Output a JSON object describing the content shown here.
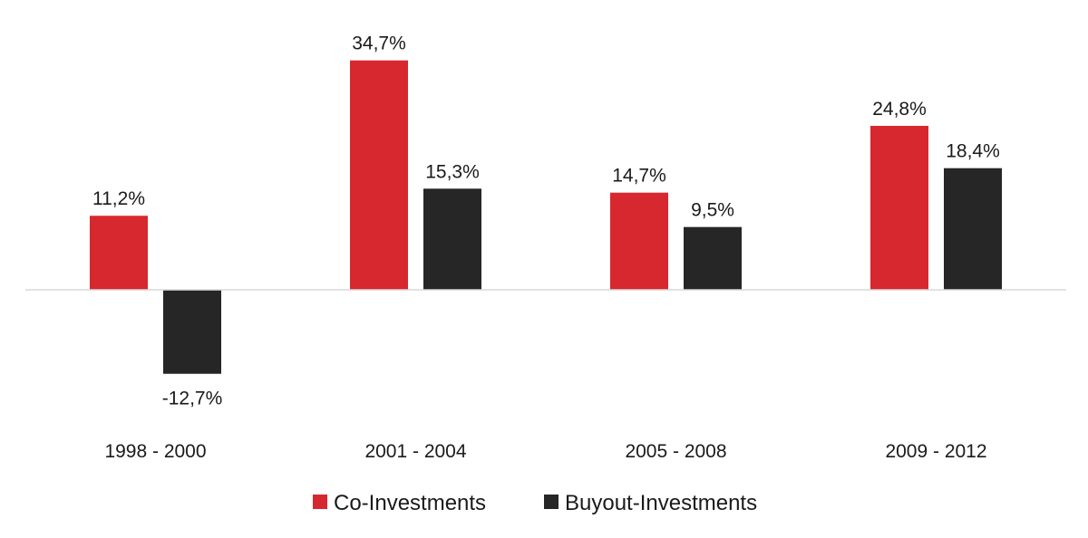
{
  "chart_data": {
    "type": "bar",
    "categories": [
      "1998 - 2000",
      "2001 - 2004",
      "2005 - 2008",
      "2009 - 2012"
    ],
    "series": [
      {
        "name": "Co-Investments",
        "color": "#d7282f",
        "values": [
          11.2,
          34.7,
          14.7,
          24.8
        ],
        "labels": [
          "11,2%",
          "34,7%",
          "14,7%",
          "24,8%"
        ]
      },
      {
        "name": "Buyout-Investments",
        "color": "#262626",
        "values": [
          -12.7,
          15.3,
          9.5,
          18.4
        ],
        "labels": [
          "-12,7%",
          "15,3%",
          "9,5%",
          "18,4%"
        ]
      }
    ],
    "ylim": [
      -18,
      40
    ],
    "grid": false,
    "legend_position": "bottom-center",
    "axis_color": "#d9d9d9"
  }
}
